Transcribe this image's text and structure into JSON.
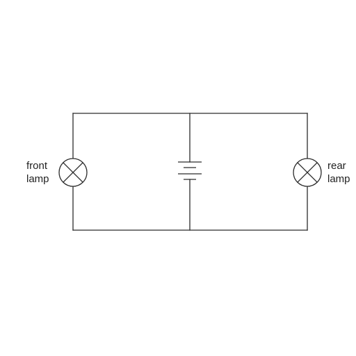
{
  "diagram": {
    "components": {
      "front_lamp": {
        "label_line1": "front",
        "label_line2": "lamp",
        "symbol": "lamp-cross-icon"
      },
      "rear_lamp": {
        "label_line1": "rear",
        "label_line2": "lamp",
        "symbol": "lamp-cross-icon"
      },
      "battery": {
        "symbol": "battery-icon",
        "cells": 2
      }
    },
    "colors": {
      "line": "#2b2b2b",
      "text": "#222222",
      "background": "#ffffff"
    }
  }
}
